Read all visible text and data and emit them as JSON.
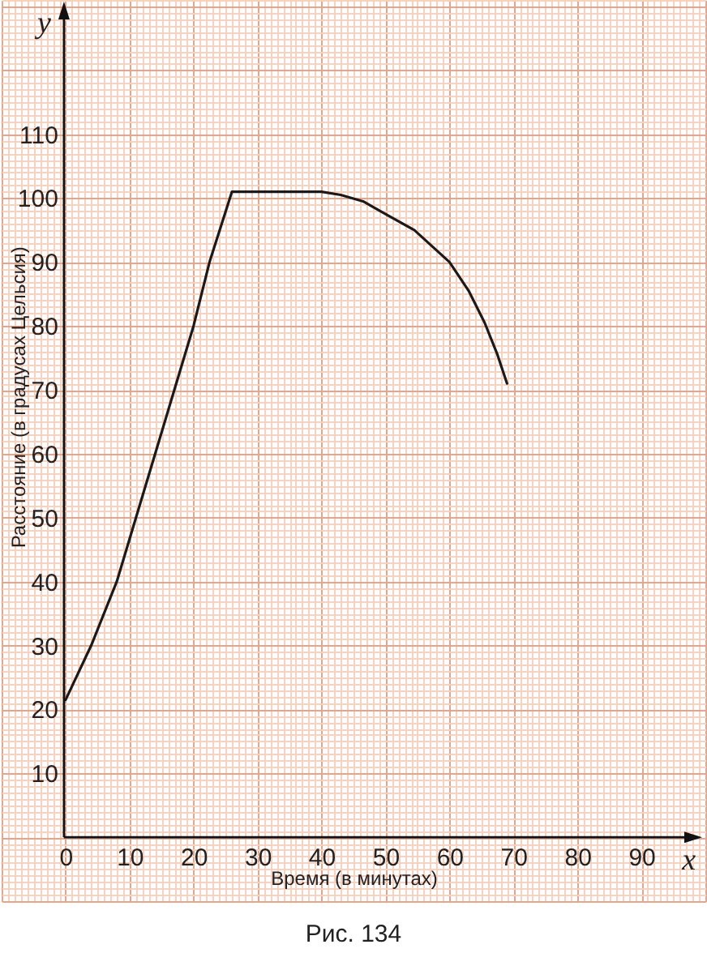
{
  "chart_data": {
    "type": "line",
    "xlabel": "Время (в минутах)",
    "ylabel": "Расстояние (в градусах Цельсия)",
    "annotations": [
      "y",
      "x",
      "Рис. 134"
    ],
    "x": [
      0,
      4,
      8,
      11,
      14,
      17,
      20,
      22.5,
      26,
      40,
      43,
      46.5,
      50,
      54.5,
      60,
      63,
      65.5,
      67.5,
      69
    ],
    "values": [
      21.5,
      30,
      40,
      50,
      60,
      70,
      80,
      90,
      101,
      101,
      100.5,
      99.5,
      97.5,
      95,
      90,
      85.5,
      80.5,
      75.5,
      71
    ],
    "color": "#1a1a1a",
    "xlim": [
      -10,
      100
    ],
    "ylim": [
      -10,
      131
    ],
    "xticks": [
      {
        "value": -10,
        "label": null
      },
      {
        "value": -9,
        "label": null
      },
      {
        "value": -8,
        "label": null
      },
      {
        "value": -7,
        "label": null
      },
      {
        "value": -6,
        "label": null
      },
      {
        "value": -5,
        "label": null
      },
      {
        "value": -4,
        "label": null
      },
      {
        "value": -3,
        "label": null
      },
      {
        "value": -2,
        "label": null
      },
      {
        "value": -1,
        "label": null
      },
      0,
      {
        "value": 1,
        "label": null
      },
      {
        "value": 2,
        "label": null
      },
      {
        "value": 3,
        "label": null
      },
      {
        "value": 4,
        "label": null
      },
      {
        "value": 5,
        "label": null
      },
      {
        "value": 6,
        "label": null
      },
      {
        "value": 7,
        "label": null
      },
      {
        "value": 8,
        "label": null
      },
      {
        "value": 9,
        "label": null
      },
      10,
      {
        "value": 11,
        "label": null
      },
      {
        "value": 12,
        "label": null
      },
      {
        "value": 13,
        "label": null
      },
      {
        "value": 14,
        "label": null
      },
      {
        "value": 15,
        "label": null
      },
      {
        "value": 16,
        "label": null
      },
      {
        "value": 17,
        "label": null
      },
      {
        "value": 18,
        "label": null
      },
      {
        "value": 19,
        "label": null
      },
      20,
      {
        "value": 21,
        "label": null
      },
      {
        "value": 22,
        "label": null
      },
      {
        "value": 23,
        "label": null
      },
      {
        "value": 24,
        "label": null
      },
      {
        "value": 25,
        "label": null
      },
      {
        "value": 26,
        "label": null
      },
      {
        "value": 27,
        "label": null
      },
      {
        "value": 28,
        "label": null
      },
      {
        "value": 29,
        "label": null
      },
      30,
      {
        "value": 31,
        "label": null
      },
      {
        "value": 32,
        "label": null
      },
      {
        "value": 33,
        "label": null
      },
      {
        "value": 34,
        "label": null
      },
      {
        "value": 35,
        "label": null
      },
      {
        "value": 36,
        "label": null
      },
      {
        "value": 37,
        "label": null
      },
      {
        "value": 38,
        "label": null
      },
      {
        "value": 39,
        "label": null
      },
      40,
      {
        "value": 41,
        "label": null
      },
      {
        "value": 42,
        "label": null
      },
      {
        "value": 43,
        "label": null
      },
      {
        "value": 44,
        "label": null
      },
      {
        "value": 45,
        "label": null
      },
      {
        "value": 46,
        "label": null
      },
      {
        "value": 47,
        "label": null
      },
      {
        "value": 48,
        "label": null
      },
      {
        "value": 49,
        "label": null
      },
      50,
      {
        "value": 51,
        "label": null
      },
      {
        "value": 52,
        "label": null
      },
      {
        "value": 53,
        "label": null
      },
      {
        "value": 54,
        "label": null
      },
      {
        "value": 55,
        "label": null
      },
      {
        "value": 56,
        "label": null
      },
      {
        "value": 57,
        "label": null
      },
      {
        "value": 58,
        "label": null
      },
      {
        "value": 59,
        "label": null
      },
      60,
      {
        "value": 61,
        "label": null
      },
      {
        "value": 62,
        "label": null
      },
      {
        "value": 63,
        "label": null
      },
      {
        "value": 64,
        "label": null
      },
      {
        "value": 65,
        "label": null
      },
      {
        "value": 66,
        "label": null
      },
      {
        "value": 67,
        "label": null
      },
      {
        "value": 68,
        "label": null
      },
      {
        "value": 69,
        "label": null
      },
      70,
      {
        "value": 71,
        "label": null
      },
      {
        "value": 72,
        "label": null
      },
      {
        "value": 73,
        "label": null
      },
      {
        "value": 74,
        "label": null
      },
      {
        "value": 75,
        "label": null
      },
      {
        "value": 76,
        "label": null
      },
      {
        "value": 77,
        "label": null
      },
      {
        "value": 78,
        "label": null
      },
      {
        "value": 79,
        "label": null
      },
      80,
      {
        "value": 81,
        "label": null
      },
      {
        "value": 82,
        "label": null
      },
      {
        "value": 83,
        "label": null
      },
      {
        "value": 84,
        "label": null
      },
      {
        "value": 85,
        "label": null
      },
      {
        "value": 86,
        "label": null
      },
      {
        "value": 87,
        "label": null
      },
      {
        "value": 88,
        "label": null
      },
      {
        "value": 89,
        "label": null
      },
      90,
      {
        "value": 91,
        "label": null
      },
      {
        "value": 92,
        "label": null
      },
      {
        "value": 93,
        "label": null
      },
      {
        "value": 94,
        "label": null
      },
      {
        "value": 95,
        "label": null
      },
      {
        "value": 96,
        "label": null
      },
      {
        "value": 97,
        "label": null
      },
      {
        "value": 98,
        "label": null
      },
      {
        "value": 99,
        "label": null
      },
      {
        "value": 100,
        "label": null
      }
    ],
    "yticks": [
      {
        "value": -10,
        "label": null
      },
      {
        "value": -9,
        "label": null
      },
      {
        "value": -8,
        "label": null
      },
      {
        "value": -7,
        "label": null
      },
      {
        "value": -6,
        "label": null
      },
      {
        "value": -5,
        "label": null
      },
      {
        "value": -4,
        "label": null
      },
      {
        "value": -3,
        "label": null
      },
      {
        "value": -2,
        "label": null
      },
      {
        "value": -1,
        "label": null
      },
      {
        "value": 0,
        "label": null
      },
      {
        "value": 1,
        "label": null
      },
      {
        "value": 2,
        "label": null
      },
      {
        "value": 3,
        "label": null
      },
      {
        "value": 4,
        "label": null
      },
      {
        "value": 5,
        "label": null
      },
      {
        "value": 6,
        "label": null
      },
      {
        "value": 7,
        "label": null
      },
      {
        "value": 8,
        "label": null
      },
      {
        "value": 9,
        "label": null
      },
      10,
      {
        "value": 11,
        "label": null
      },
      {
        "value": 12,
        "label": null
      },
      {
        "value": 13,
        "label": null
      },
      {
        "value": 14,
        "label": null
      },
      {
        "value": 15,
        "label": null
      },
      {
        "value": 16,
        "label": null
      },
      {
        "value": 17,
        "label": null
      },
      {
        "value": 18,
        "label": null
      },
      {
        "value": 19,
        "label": null
      },
      20,
      {
        "value": 21,
        "label": null
      },
      {
        "value": 22,
        "label": null
      },
      {
        "value": 23,
        "label": null
      },
      {
        "value": 24,
        "label": null
      },
      {
        "value": 25,
        "label": null
      },
      {
        "value": 26,
        "label": null
      },
      {
        "value": 27,
        "label": null
      },
      {
        "value": 28,
        "label": null
      },
      {
        "value": 29,
        "label": null
      },
      30,
      {
        "value": 31,
        "label": null
      },
      {
        "value": 32,
        "label": null
      },
      {
        "value": 33,
        "label": null
      },
      {
        "value": 34,
        "label": null
      },
      {
        "value": 35,
        "label": null
      },
      {
        "value": 36,
        "label": null
      },
      {
        "value": 37,
        "label": null
      },
      {
        "value": 38,
        "label": null
      },
      {
        "value": 39,
        "label": null
      },
      40,
      {
        "value": 41,
        "label": null
      },
      {
        "value": 42,
        "label": null
      },
      {
        "value": 43,
        "label": null
      },
      {
        "value": 44,
        "label": null
      },
      {
        "value": 45,
        "label": null
      },
      {
        "value": 46,
        "label": null
      },
      {
        "value": 47,
        "label": null
      },
      {
        "value": 48,
        "label": null
      },
      {
        "value": 49,
        "label": null
      },
      50,
      {
        "value": 51,
        "label": null
      },
      {
        "value": 52,
        "label": null
      },
      {
        "value": 53,
        "label": null
      },
      {
        "value": 54,
        "label": null
      },
      {
        "value": 55,
        "label": null
      },
      {
        "value": 56,
        "label": null
      },
      {
        "value": 57,
        "label": null
      },
      {
        "value": 58,
        "label": null
      },
      {
        "value": 59,
        "label": null
      },
      60,
      {
        "value": 61,
        "label": null
      },
      {
        "value": 62,
        "label": null
      },
      {
        "value": 63,
        "label": null
      },
      {
        "value": 64,
        "label": null
      },
      {
        "value": 65,
        "label": null
      },
      {
        "value": 66,
        "label": null
      },
      {
        "value": 67,
        "label": null
      },
      {
        "value": 68,
        "label": null
      },
      {
        "value": 69,
        "label": null
      },
      70,
      {
        "value": 71,
        "label": null
      },
      {
        "value": 72,
        "label": null
      },
      {
        "value": 73,
        "label": null
      },
      {
        "value": 74,
        "label": null
      },
      {
        "value": 75,
        "label": null
      },
      {
        "value": 76,
        "label": null
      },
      {
        "value": 77,
        "label": null
      },
      {
        "value": 78,
        "label": null
      },
      {
        "value": 79,
        "label": null
      },
      80,
      {
        "value": 81,
        "label": null
      },
      {
        "value": 82,
        "label": null
      },
      {
        "value": 83,
        "label": null
      },
      {
        "value": 84,
        "label": null
      },
      {
        "value": 85,
        "label": null
      },
      {
        "value": 86,
        "label": null
      },
      {
        "value": 87,
        "label": null
      },
      {
        "value": 88,
        "label": null
      },
      {
        "value": 89,
        "label": null
      },
      90,
      {
        "value": 91,
        "label": null
      },
      {
        "value": 92,
        "label": null
      },
      {
        "value": 93,
        "label": null
      },
      {
        "value": 94,
        "label": null
      },
      {
        "value": 95,
        "label": null
      },
      {
        "value": 96,
        "label": null
      },
      {
        "value": 97,
        "label": null
      },
      {
        "value": 98,
        "label": null
      },
      {
        "value": 99,
        "label": null
      },
      100,
      {
        "value": 101,
        "label": null
      },
      {
        "value": 102,
        "label": null
      },
      {
        "value": 103,
        "label": null
      },
      {
        "value": 104,
        "label": null
      },
      {
        "value": 105,
        "label": null
      },
      {
        "value": 106,
        "label": null
      },
      {
        "value": 107,
        "label": null
      },
      {
        "value": 108,
        "label": null
      },
      {
        "value": 109,
        "label": null
      },
      110,
      {
        "value": 111,
        "label": null
      },
      {
        "value": 112,
        "label": null
      },
      {
        "value": 113,
        "label": null
      },
      {
        "value": 114,
        "label": null
      },
      {
        "value": 115,
        "label": null
      },
      {
        "value": 116,
        "label": null
      },
      {
        "value": 117,
        "label": null
      },
      {
        "value": 118,
        "label": null
      },
      {
        "value": 119,
        "label": null
      },
      {
        "value": 120,
        "label": null
      },
      {
        "value": 121,
        "label": null
      },
      {
        "value": 122,
        "label": null
      },
      {
        "value": 123,
        "label": null
      },
      {
        "value": 124,
        "label": null
      },
      {
        "value": 125,
        "label": null
      },
      {
        "value": 126,
        "label": null
      },
      {
        "value": 127,
        "label": null
      },
      {
        "value": 128,
        "label": null
      },
      {
        "value": 129,
        "label": null
      },
      {
        "value": 130,
        "label": null
      },
      {
        "value": 131,
        "label": null
      }
    ],
    "grid": true
  }
}
